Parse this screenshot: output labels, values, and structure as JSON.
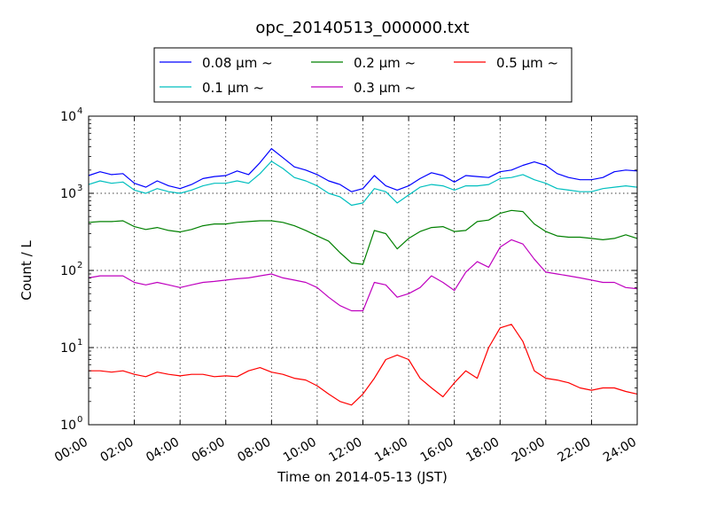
{
  "chart_data": {
    "type": "line",
    "title": "opc_20140513_000000.txt",
    "xlabel": "Time on 2014-05-13 (JST)",
    "ylabel": "Count / L",
    "y_scale": "log",
    "ylim": [
      1,
      10000
    ],
    "xlim": [
      0,
      24
    ],
    "x_ticks": [
      "00:00",
      "02:00",
      "04:00",
      "06:00",
      "08:00",
      "10:00",
      "12:00",
      "14:00",
      "16:00",
      "18:00",
      "20:00",
      "22:00",
      "24:00"
    ],
    "y_ticks": [
      {
        "value": 1,
        "base": "10",
        "exp": "0"
      },
      {
        "value": 10,
        "base": "10",
        "exp": "1"
      },
      {
        "value": 100,
        "base": "10",
        "exp": "2"
      },
      {
        "value": 1000,
        "base": "10",
        "exp": "3"
      },
      {
        "value": 10000,
        "base": "10",
        "exp": "4"
      }
    ],
    "grid": true,
    "legend_position": "top",
    "x_hours": [
      0,
      0.5,
      1,
      1.5,
      2,
      2.5,
      3,
      3.5,
      4,
      4.5,
      5,
      5.5,
      6,
      6.5,
      7,
      7.5,
      8,
      8.5,
      9,
      9.5,
      10,
      10.5,
      11,
      11.5,
      12,
      12.5,
      13,
      13.5,
      14,
      14.5,
      15,
      15.5,
      16,
      16.5,
      17,
      17.5,
      18,
      18.5,
      19,
      19.5,
      20,
      20.5,
      21,
      21.5,
      22,
      22.5,
      23,
      23.5,
      24
    ],
    "series": [
      {
        "name": "0.08 μm ~",
        "color": "#0000ff",
        "values": [
          1700,
          1900,
          1750,
          1800,
          1350,
          1200,
          1450,
          1250,
          1150,
          1300,
          1550,
          1650,
          1700,
          1950,
          1750,
          2500,
          3800,
          2900,
          2200,
          2000,
          1750,
          1450,
          1300,
          1050,
          1150,
          1700,
          1250,
          1100,
          1250,
          1550,
          1850,
          1700,
          1400,
          1700,
          1650,
          1600,
          1900,
          2000,
          2300,
          2550,
          2300,
          1800,
          1600,
          1500,
          1500,
          1600,
          1900,
          2000,
          1950
        ]
      },
      {
        "name": "0.2 μm ~",
        "color": "#008000",
        "values": [
          420,
          430,
          430,
          440,
          370,
          340,
          360,
          330,
          315,
          340,
          380,
          400,
          400,
          420,
          430,
          440,
          440,
          420,
          380,
          330,
          280,
          240,
          170,
          125,
          120,
          330,
          300,
          190,
          260,
          320,
          360,
          370,
          320,
          330,
          430,
          450,
          550,
          600,
          580,
          400,
          320,
          280,
          270,
          270,
          260,
          250,
          260,
          290,
          260
        ]
      },
      {
        "name": "0.5 μm ~",
        "color": "#ff0000",
        "values": [
          5.0,
          5.0,
          4.8,
          5.0,
          4.5,
          4.2,
          4.8,
          4.5,
          4.3,
          4.5,
          4.5,
          4.2,
          4.3,
          4.2,
          5.0,
          5.5,
          4.8,
          4.5,
          4.0,
          3.8,
          3.2,
          2.5,
          2.0,
          1.8,
          2.5,
          4.0,
          7.0,
          8.0,
          7.0,
          4.0,
          3.0,
          2.3,
          3.5,
          5.0,
          4.0,
          10.0,
          18.0,
          20.0,
          12.0,
          5.0,
          4.0,
          3.8,
          3.5,
          3.0,
          2.8,
          3.0,
          3.0,
          2.7,
          2.5
        ]
      },
      {
        "name": "0.1 μm ~",
        "color": "#00bfbf",
        "values": [
          1300,
          1450,
          1350,
          1400,
          1100,
          1000,
          1150,
          1050,
          1000,
          1100,
          1250,
          1350,
          1350,
          1450,
          1350,
          1800,
          2600,
          2100,
          1600,
          1450,
          1250,
          1000,
          900,
          700,
          750,
          1150,
          1050,
          750,
          950,
          1200,
          1300,
          1250,
          1100,
          1250,
          1250,
          1300,
          1550,
          1600,
          1750,
          1500,
          1350,
          1150,
          1100,
          1050,
          1050,
          1150,
          1200,
          1250,
          1200
        ]
      },
      {
        "name": "0.3 μm ~",
        "color": "#bf00bf",
        "values": [
          80,
          85,
          85,
          85,
          70,
          65,
          70,
          65,
          60,
          65,
          70,
          72,
          75,
          78,
          80,
          85,
          90,
          80,
          75,
          70,
          60,
          45,
          35,
          30,
          30,
          70,
          65,
          45,
          50,
          60,
          85,
          70,
          55,
          95,
          130,
          110,
          200,
          250,
          220,
          140,
          95,
          90,
          85,
          80,
          75,
          70,
          70,
          60,
          58
        ]
      }
    ]
  }
}
